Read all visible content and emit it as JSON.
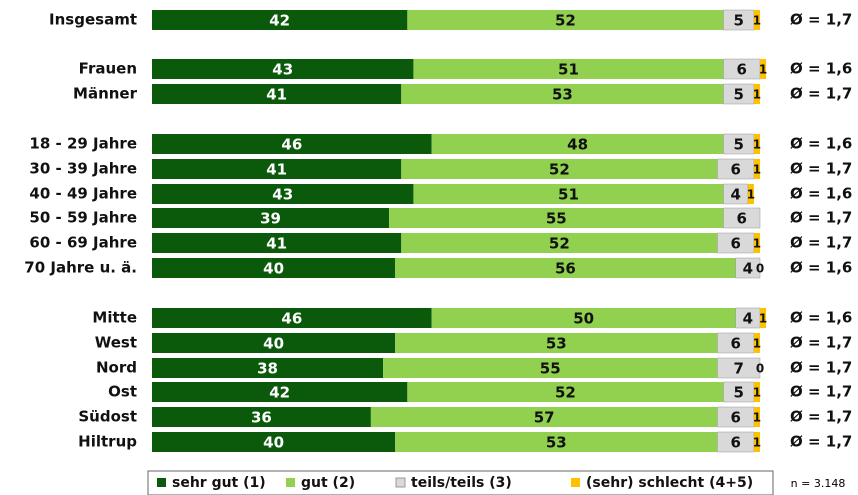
{
  "chart_data": {
    "type": "stacked_bar_horizontal",
    "categories": [
      "Insgesamt",
      "Frauen",
      "Männer",
      "18 - 29 Jahre",
      "30 - 39 Jahre",
      "40 - 49 Jahre",
      "50 - 59 Jahre",
      "60 - 69 Jahre",
      "70 Jahre u. ä.",
      "Mitte",
      "West",
      "Nord",
      "Ost",
      "Südost",
      "Hiltrup"
    ],
    "xlim": [
      0,
      100
    ],
    "series": [
      {
        "name": "sehr gut (1)",
        "color": "#0b5a0b",
        "values": [
          42,
          43,
          41,
          46,
          41,
          43,
          39,
          41,
          40,
          46,
          40,
          38,
          42,
          36,
          40
        ]
      },
      {
        "name": "gut (2)",
        "color": "#92d050",
        "values": [
          52,
          51,
          53,
          48,
          52,
          51,
          55,
          52,
          56,
          50,
          53,
          55,
          52,
          57,
          53
        ]
      },
      {
        "name": "teils/teils (3)",
        "color": "#d9d9d9",
        "values": [
          5,
          6,
          5,
          5,
          6,
          4,
          6,
          6,
          4,
          4,
          6,
          7,
          5,
          6,
          6
        ]
      },
      {
        "name": "(sehr) schlecht (4+5)",
        "color": "#ffc000",
        "values": [
          1,
          1,
          1,
          1,
          1,
          1,
          0,
          1,
          0,
          1,
          1,
          0,
          1,
          1,
          1
        ],
        "value_labels": [
          "1",
          "1",
          "1",
          "1",
          "1",
          "1",
          null,
          "1",
          "0",
          "1",
          "1",
          "0",
          "1",
          "1",
          "1"
        ]
      }
    ],
    "averages": [
      "Ø = 1,7",
      "Ø = 1,6",
      "Ø = 1,7",
      "Ø = 1,6",
      "Ø = 1,7",
      "Ø = 1,6",
      "Ø = 1,7",
      "Ø = 1,7",
      "Ø = 1,6",
      "Ø = 1,6",
      "Ø = 1,7",
      "Ø = 1,7",
      "Ø = 1,7",
      "Ø = 1,7",
      "Ø = 1,7"
    ],
    "note": "n = 3.148"
  }
}
